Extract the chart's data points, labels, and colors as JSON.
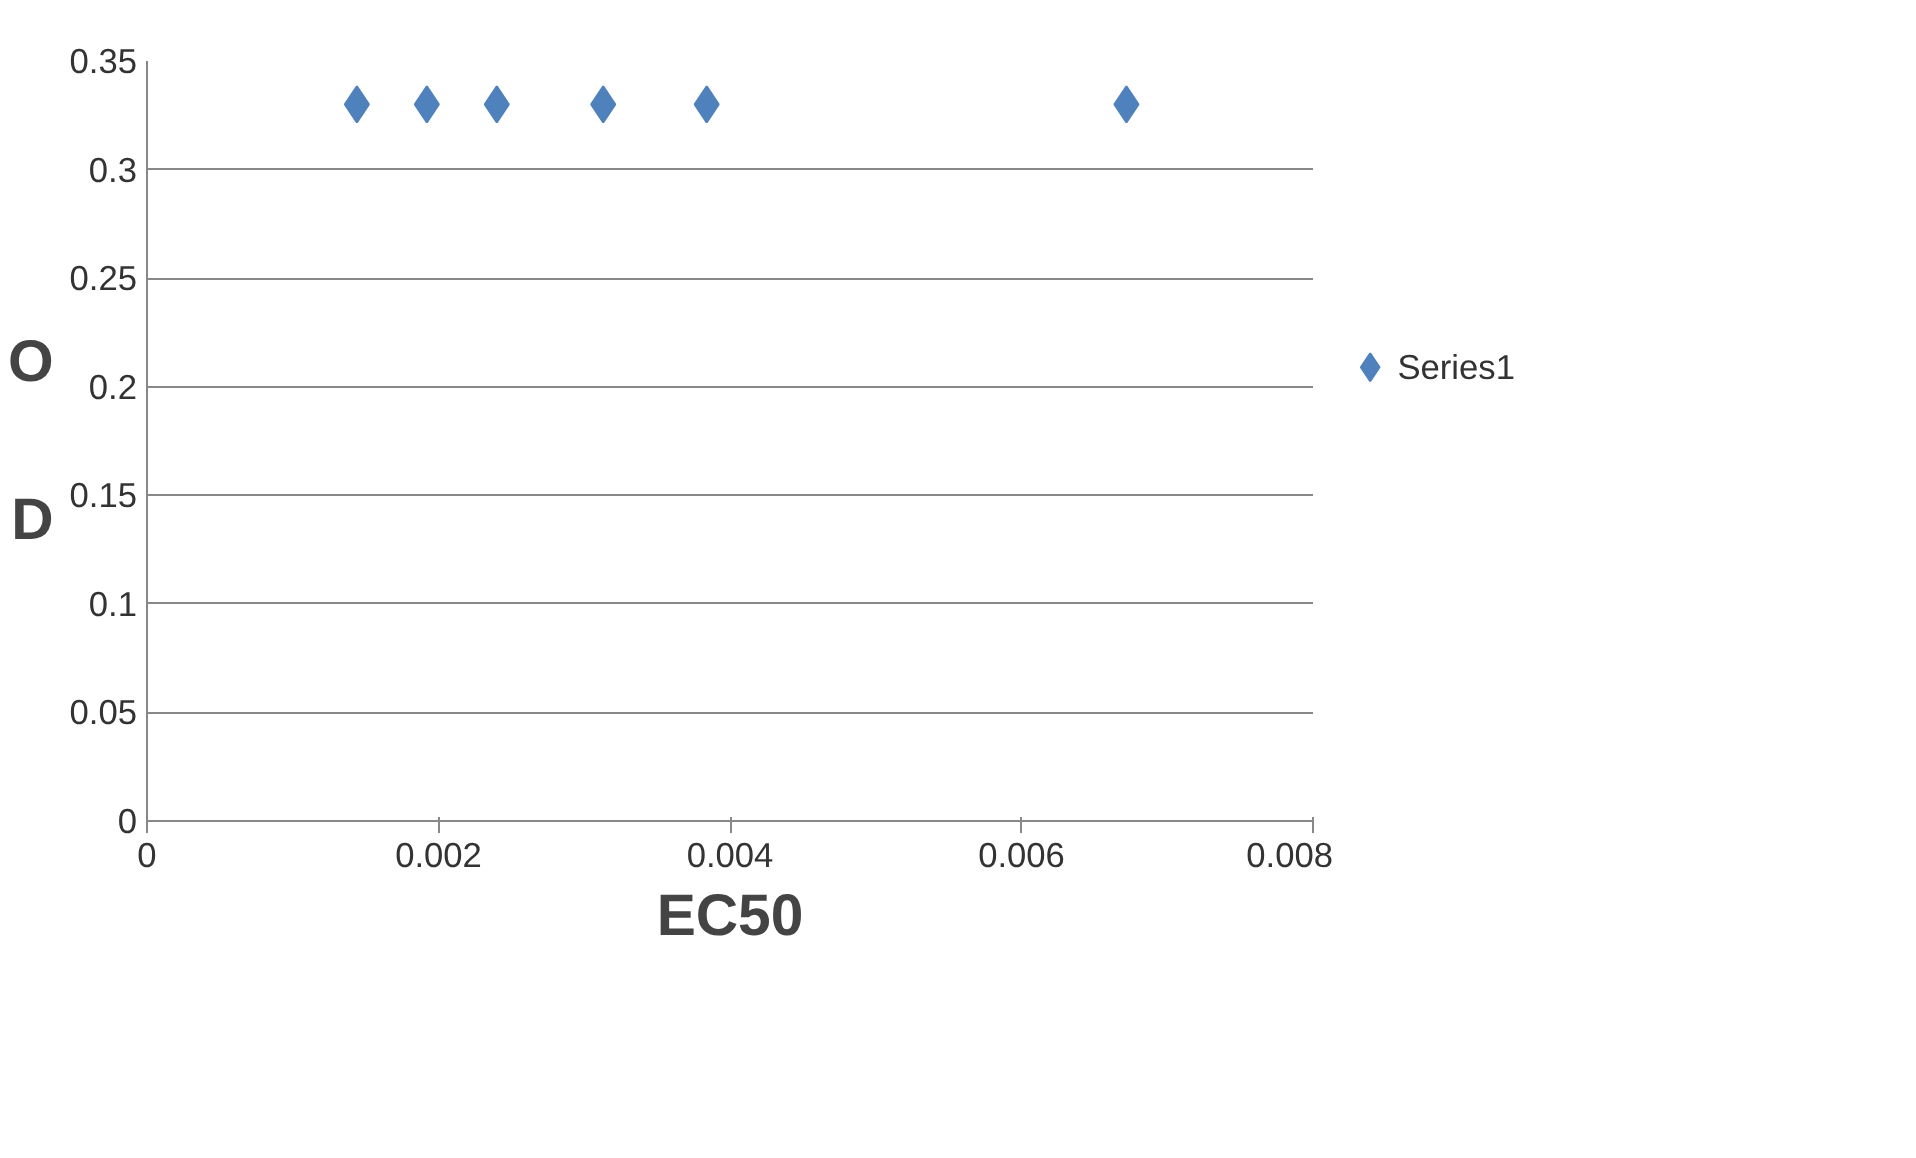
{
  "chart_data": {
    "type": "scatter",
    "xlabel": "EC50",
    "ylabel": "OD",
    "x": [
      0.00144,
      0.00192,
      0.0024,
      0.00313,
      0.00384,
      0.00672
    ],
    "series": [
      {
        "name": "Series1",
        "color": "#4f81bd",
        "values": [
          0.33,
          0.33,
          0.33,
          0.33,
          0.33,
          0.33
        ]
      }
    ],
    "xlim": [
      0,
      0.008
    ],
    "xticks": [
      0,
      0.002,
      0.004,
      0.006,
      0.008
    ],
    "ylim": [
      0,
      0.35
    ],
    "yticks": [
      0,
      0.05,
      0.1,
      0.15,
      0.2,
      0.25,
      0.3,
      0.35
    ],
    "grid": "y",
    "legend": "right",
    "marker": "diamond"
  }
}
